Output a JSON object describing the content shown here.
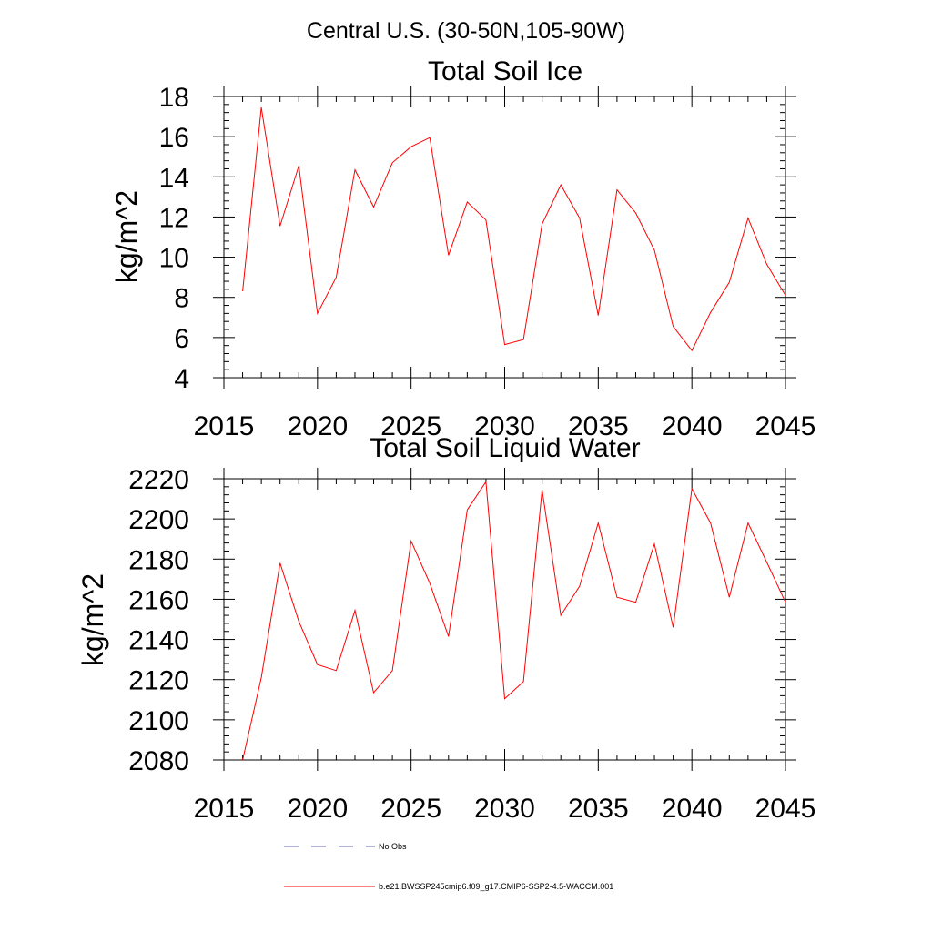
{
  "chart_data": [
    {
      "type": "line",
      "supertitle": "Central U.S. (30-50N,105-90W)",
      "title": "Total Soil Ice",
      "xlabel": "",
      "ylabel": "kg/m^2",
      "xlim": [
        2015,
        2045
      ],
      "ylim": [
        4,
        18
      ],
      "xticks": [
        2015,
        2020,
        2025,
        2030,
        2035,
        2040,
        2045
      ],
      "xtick_labels": [
        "2015",
        "2020",
        "2025",
        "2030",
        "2035",
        "2040",
        "2045"
      ],
      "yticks": [
        4,
        6,
        8,
        10,
        12,
        14,
        16,
        18
      ],
      "ytick_labels": [
        "4",
        "6",
        "8",
        "10",
        "12",
        "14",
        "16",
        "18"
      ],
      "series": [
        {
          "name": "b.e21.BWSSP245cmip6.f09_g17.CMIP6-SSP2-4.5-WACCM.001",
          "color": "#ff0000",
          "x": [
            2016,
            2017,
            2018,
            2019,
            2020,
            2021,
            2022,
            2023,
            2024,
            2025,
            2026,
            2027,
            2028,
            2029,
            2030,
            2031,
            2032,
            2033,
            2034,
            2035,
            2036,
            2037,
            2038,
            2039,
            2040,
            2041,
            2042,
            2043,
            2044,
            2045
          ],
          "y": [
            8.3,
            17.45,
            11.55,
            14.55,
            7.2,
            9.0,
            14.35,
            12.5,
            14.7,
            15.5,
            15.95,
            10.1,
            12.75,
            11.85,
            5.65,
            5.9,
            11.65,
            13.6,
            11.95,
            7.1,
            13.35,
            12.2,
            10.35,
            6.55,
            5.35,
            7.25,
            8.75,
            11.95,
            9.65,
            8.1
          ]
        }
      ]
    },
    {
      "type": "line",
      "title": "Total Soil Liquid Water",
      "xlabel": "",
      "ylabel": "kg/m^2",
      "xlim": [
        2015,
        2045
      ],
      "ylim": [
        2080,
        2220
      ],
      "xticks": [
        2015,
        2020,
        2025,
        2030,
        2035,
        2040,
        2045
      ],
      "xtick_labels": [
        "2015",
        "2020",
        "2025",
        "2030",
        "2035",
        "2040",
        "2045"
      ],
      "yticks": [
        2080,
        2100,
        2120,
        2140,
        2160,
        2180,
        2200,
        2220
      ],
      "ytick_labels": [
        "2080",
        "2100",
        "2120",
        "2140",
        "2160",
        "2180",
        "2200",
        "2220"
      ],
      "series": [
        {
          "name": "b.e21.BWSSP245cmip6.f09_g17.CMIP6-SSP2-4.5-WACCM.001",
          "color": "#ff0000",
          "x": [
            2016,
            2017,
            2018,
            2019,
            2020,
            2021,
            2022,
            2023,
            2024,
            2025,
            2026,
            2027,
            2028,
            2029,
            2030,
            2031,
            2032,
            2033,
            2034,
            2035,
            2036,
            2037,
            2038,
            2039,
            2040,
            2041,
            2042,
            2043,
            2044,
            2045
          ],
          "y": [
            2080,
            2121,
            2178,
            2149,
            2127.5,
            2124.5,
            2154.5,
            2113.5,
            2124.5,
            2189,
            2168,
            2141.5,
            2204.5,
            2218.5,
            2110.5,
            2119,
            2214.5,
            2152,
            2166.5,
            2198,
            2161,
            2158.5,
            2187.5,
            2146,
            2215,
            2198,
            2161,
            2198,
            2178.5,
            2158.5
          ]
        }
      ]
    }
  ],
  "legend": [
    {
      "label": "No Obs",
      "color": "#6666aa",
      "style": "dashed"
    },
    {
      "label": "b.e21.BWSSP245cmip6.f09_g17.CMIP6-SSP2-4.5-WACCM.001",
      "color": "#ff0000",
      "style": "solid"
    }
  ]
}
